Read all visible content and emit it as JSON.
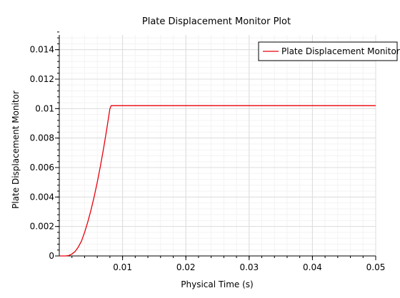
{
  "chart_data": {
    "type": "line",
    "title": "Plate Displacement Monitor Plot",
    "xlabel": "Physical Time (s)",
    "ylabel": "Plate Displacement Monitor",
    "xlim": [
      0.0,
      0.05
    ],
    "ylim": [
      0.0,
      0.015
    ],
    "xticks": [
      0.01,
      0.02,
      0.03,
      0.04,
      0.05
    ],
    "xtick_labels": [
      "0.01",
      "0.02",
      "0.03",
      "0.04",
      "0.05"
    ],
    "yticks": [
      0,
      0.002,
      0.004,
      0.006,
      0.008,
      0.01,
      0.012,
      0.014
    ],
    "ytick_labels": [
      "0",
      "0.002",
      "0.004",
      "0.006",
      "0.008",
      "0.01",
      "0.012",
      "0.014"
    ],
    "grid": true,
    "legend_position": "top-right",
    "series": [
      {
        "name": "Plate Displacement Monitor",
        "color": "#e8000b",
        "x": [
          0.0,
          0.001,
          0.0015,
          0.002,
          0.0025,
          0.003,
          0.0035,
          0.004,
          0.0045,
          0.005,
          0.0055,
          0.006,
          0.0065,
          0.007,
          0.0075,
          0.008,
          0.0082,
          0.01,
          0.02,
          0.03,
          0.04,
          0.05
        ],
        "y": [
          0.0,
          0.0,
          3e-05,
          0.00013,
          0.0003,
          0.0006,
          0.001,
          0.0016,
          0.0023,
          0.0031,
          0.004,
          0.005,
          0.0061,
          0.0073,
          0.0086,
          0.01,
          0.0102,
          0.0102,
          0.0102,
          0.0102,
          0.0102,
          0.0102
        ]
      }
    ]
  }
}
